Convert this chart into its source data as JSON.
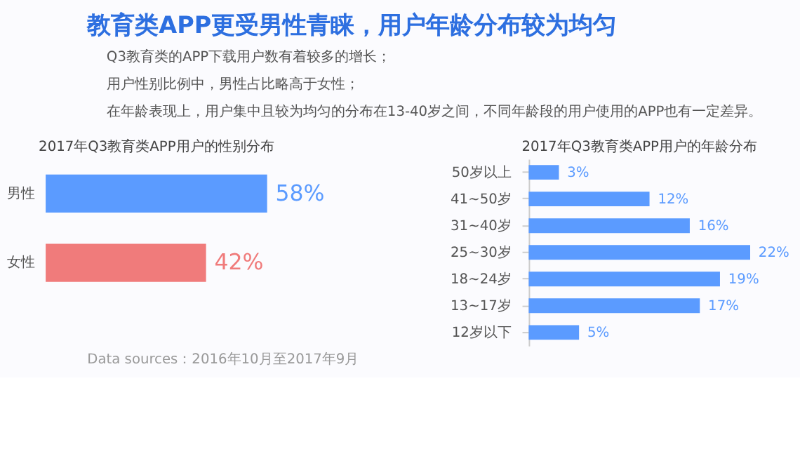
{
  "chart_data": [
    {
      "type": "bar",
      "orientation": "horizontal",
      "title": "2017年Q3教育类APP用户的性别分布",
      "categories": [
        "男性",
        "女性"
      ],
      "values": [
        58,
        42
      ],
      "value_labels": [
        "58%",
        "42%"
      ],
      "colors": [
        "#5b9bff",
        "#f07b7b"
      ],
      "annotations": [
        "教育类APP更受男性青睐，用户年龄分布较为均匀",
        "Q3教育类的APP下载用户数有着较多的增长；",
        "用户性别比例中，男性占比略高于女性；",
        "在年龄表现上，用户集中且较为均匀的分布在13-40岁之间，不同年龄段的用户使用的APP也有一定差异。",
        "Data sources：2016年10月至2017年9月"
      ]
    },
    {
      "type": "bar",
      "orientation": "horizontal",
      "title": "2017年Q3教育类APP用户的年龄分布",
      "categories": [
        "50岁以上",
        "41~50岁",
        "31~40岁",
        "25~30岁",
        "18~24岁",
        "13~17岁",
        "12岁以下"
      ],
      "values": [
        3,
        12,
        16,
        22,
        19,
        17,
        5
      ],
      "value_labels": [
        "3%",
        "12%",
        "16%",
        "22%",
        "19%",
        "17%",
        "5%"
      ],
      "color": "#5b9bff"
    }
  ]
}
